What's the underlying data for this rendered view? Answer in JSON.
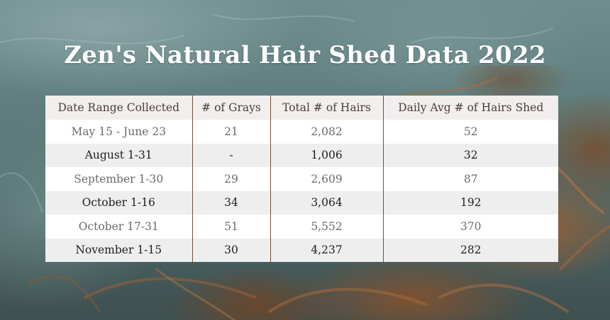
{
  "chart_data": {
    "type": "table",
    "title": "Zen's Natural Hair Shed Data 2022",
    "columns": [
      "Date Range Collected",
      "# of Grays",
      "Total # of Hairs",
      "Daily Avg # of Hairs Shed"
    ],
    "rows": [
      [
        "May 15 - June 23",
        "21",
        "2,082",
        "52"
      ],
      [
        "August 1-31",
        "-",
        "1,006",
        "32"
      ],
      [
        "September 1-30",
        "29",
        "2,609",
        "87"
      ],
      [
        "October 1-16",
        "34",
        "3,064",
        "192"
      ],
      [
        "October 17-31",
        "51",
        "5,552",
        "370"
      ],
      [
        "November 1-15",
        "30",
        "4,237",
        "282"
      ]
    ]
  }
}
